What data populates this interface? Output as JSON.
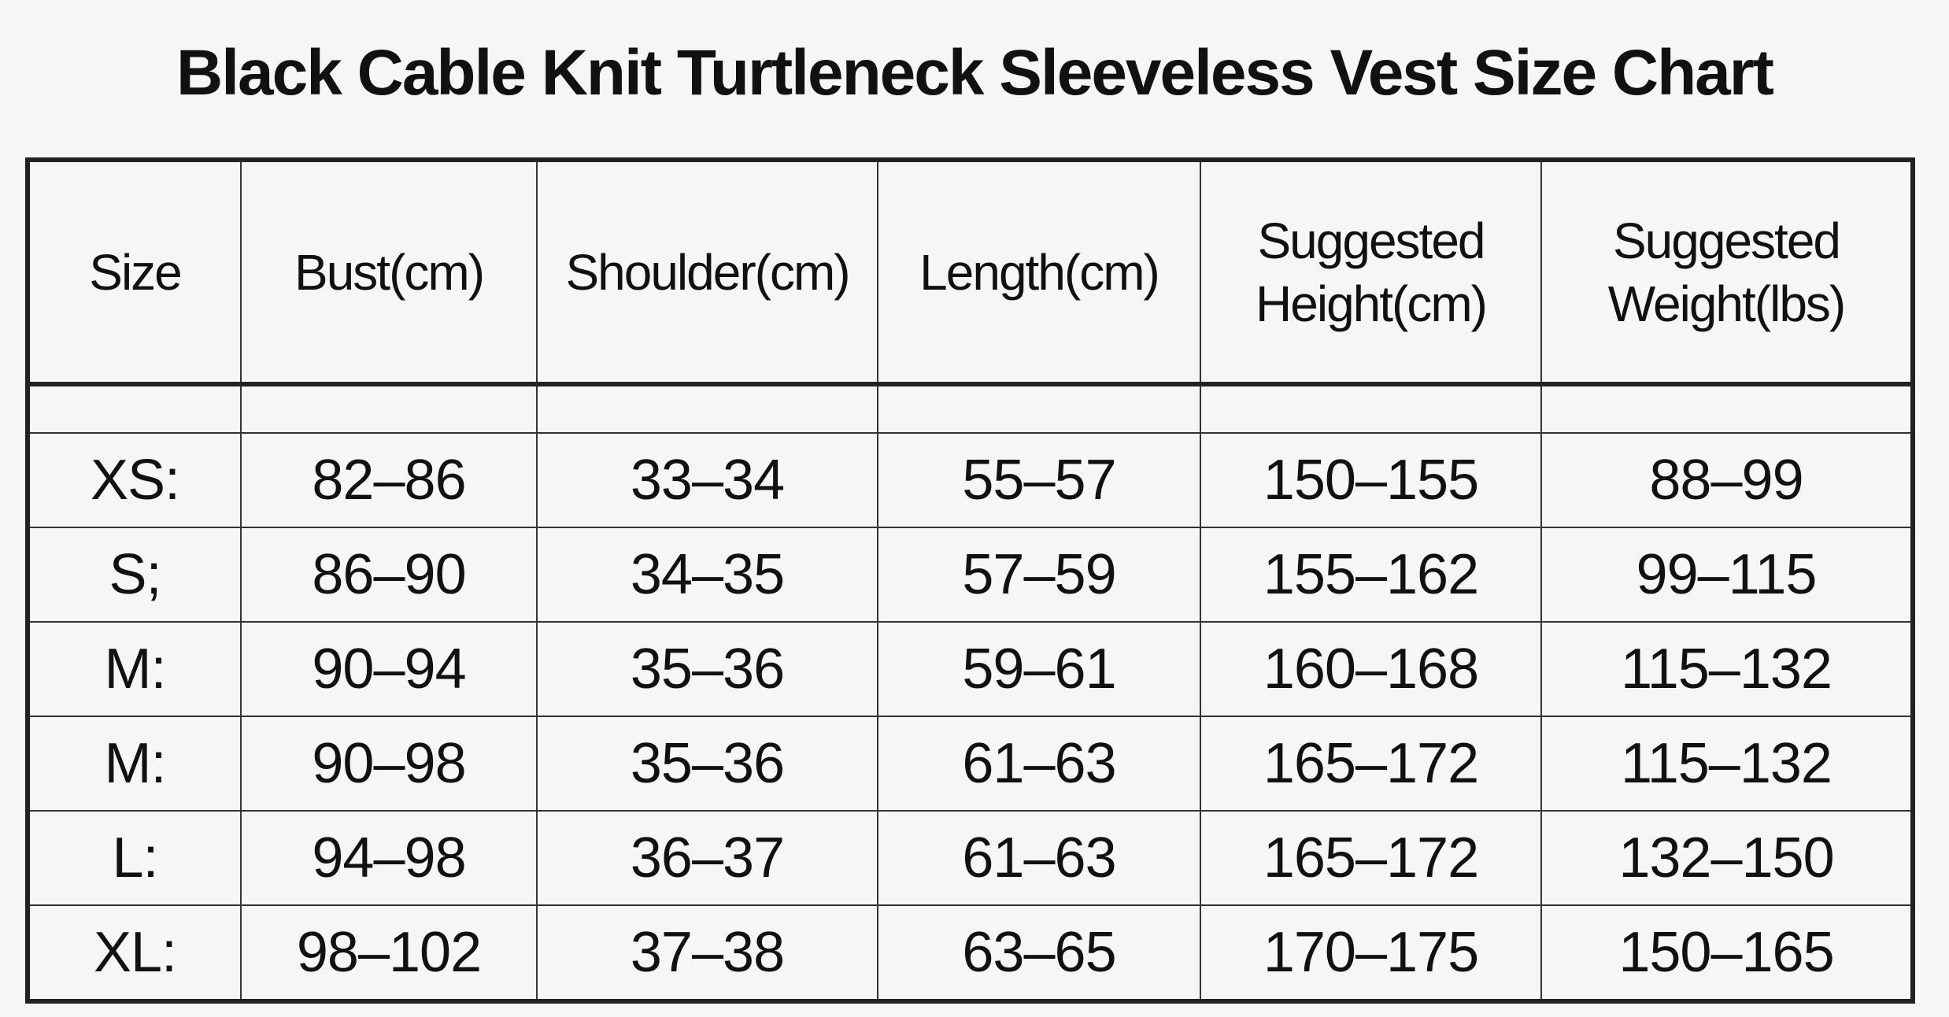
{
  "header": {
    "title": "Black Cable Knit Turtleneck Sleeveless Vest Size Chart"
  },
  "table": {
    "columns": [
      "Size",
      "Bust(cm)",
      "Shoulder(cm)",
      "Length(cm)",
      "Suggested Height(cm)",
      "Suggested Weight(lbs)"
    ],
    "rows": [
      [
        "XS:",
        "82–86",
        "33–34",
        "55–57",
        "150–155",
        "88–99"
      ],
      [
        "S;",
        "86–90",
        "34–35",
        "57–59",
        "155–162",
        "99–115"
      ],
      [
        "M:",
        "90–94",
        "35–36",
        "59–61",
        "160–168",
        "115–132"
      ],
      [
        "M:",
        "90–98",
        "35–36",
        "61–63",
        "165–172",
        "115–132"
      ],
      [
        "L:",
        "94–98",
        "36–37",
        "61–63",
        "165–172",
        "132–150"
      ],
      [
        "XL:",
        "98–102",
        "37–38",
        "63–65",
        "170–175",
        "150–165"
      ]
    ]
  }
}
